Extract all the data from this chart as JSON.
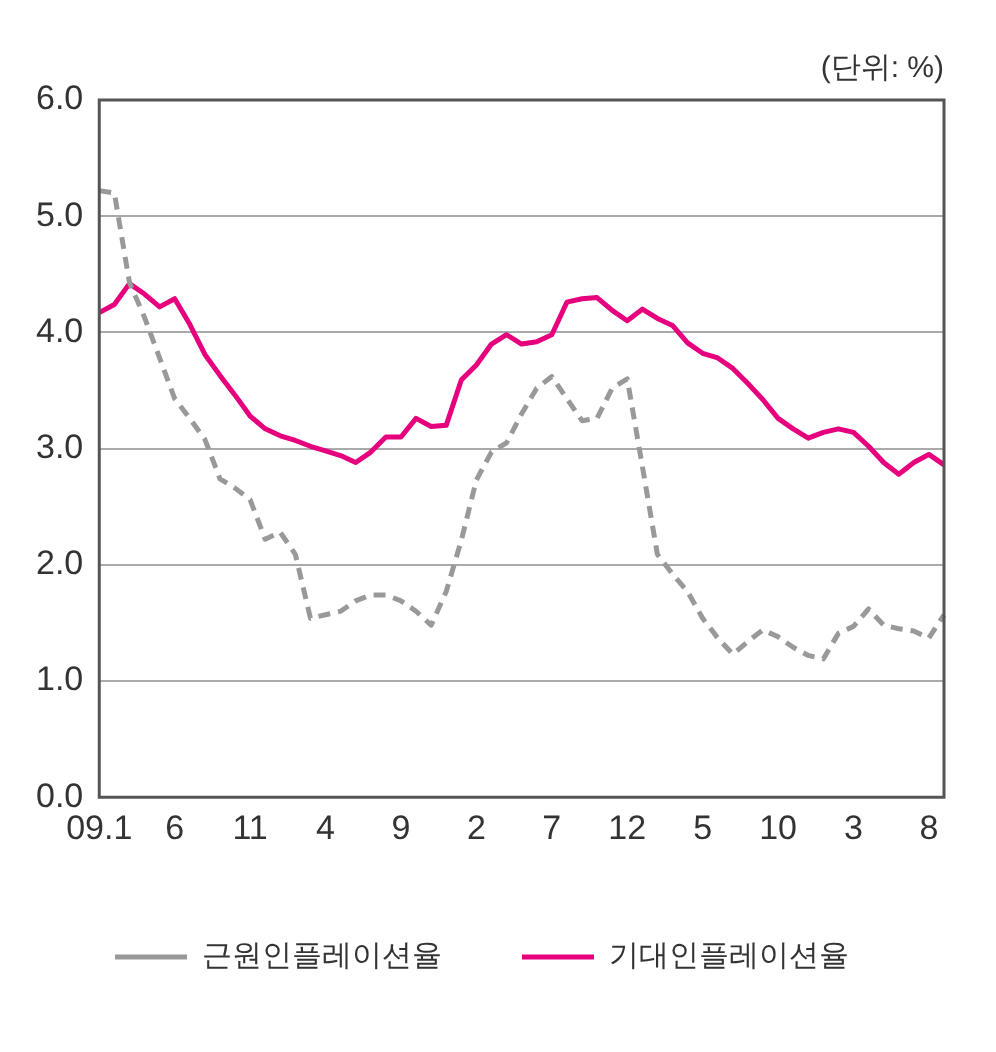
{
  "chart_data": {
    "type": "line",
    "annotations": [
      "(단위: %)"
    ],
    "categories": [
      "09.1",
      null,
      null,
      null,
      null,
      "6",
      null,
      null,
      null,
      null,
      "11",
      null,
      null,
      null,
      null,
      "4",
      null,
      null,
      null,
      null,
      "9",
      null,
      null,
      null,
      null,
      "2",
      null,
      null,
      null,
      null,
      "7",
      null,
      null,
      null,
      null,
      "12",
      null,
      null,
      null,
      null,
      "5",
      null,
      null,
      null,
      null,
      "10",
      null,
      null,
      null,
      null,
      "3",
      null,
      null,
      null,
      null,
      "8",
      null
    ],
    "series": [
      {
        "name": "근원인플레이션율",
        "color": "#999999",
        "line_style": "dashed",
        "values": [
          5.22,
          5.2,
          4.43,
          4.13,
          3.78,
          3.43,
          3.26,
          3.08,
          2.74,
          2.66,
          2.56,
          2.22,
          2.28,
          2.09,
          1.54,
          1.57,
          1.6,
          1.69,
          1.74,
          1.74,
          1.69,
          1.6,
          1.48,
          1.77,
          2.21,
          2.73,
          2.97,
          3.05,
          3.3,
          3.52,
          3.62,
          3.43,
          3.24,
          3.26,
          3.52,
          3.6,
          2.85,
          2.09,
          1.92,
          1.77,
          1.54,
          1.37,
          1.23,
          1.34,
          1.44,
          1.38,
          1.29,
          1.22,
          1.19,
          1.41,
          1.47,
          1.62,
          1.48,
          1.45,
          1.43,
          1.37,
          1.57
        ]
      },
      {
        "name": "기대인플레이션율",
        "color": "#e6007e",
        "line_style": "solid",
        "values": [
          4.17,
          4.24,
          4.42,
          4.33,
          4.22,
          4.29,
          4.07,
          3.81,
          3.63,
          3.46,
          3.28,
          3.17,
          3.11,
          3.07,
          3.02,
          2.98,
          2.94,
          2.88,
          2.97,
          3.1,
          3.1,
          3.26,
          3.19,
          3.2,
          3.59,
          3.72,
          3.9,
          3.98,
          3.9,
          3.92,
          3.98,
          4.26,
          4.29,
          4.3,
          4.19,
          4.1,
          4.2,
          4.12,
          4.06,
          3.91,
          3.82,
          3.78,
          3.69,
          3.56,
          3.42,
          3.26,
          3.17,
          3.09,
          3.14,
          3.17,
          3.14,
          3.02,
          2.88,
          2.78,
          2.88,
          2.95,
          2.86
        ]
      }
    ],
    "ylim": [
      0,
      6
    ],
    "yticks": [
      {
        "value": 0,
        "label": "0.0"
      },
      {
        "value": 1,
        "label": "1.0"
      },
      {
        "value": 2,
        "label": "2.0"
      },
      {
        "value": 3,
        "label": "3.0"
      },
      {
        "value": 4,
        "label": "4.0"
      },
      {
        "value": 5,
        "label": "5.0"
      },
      {
        "value": 6,
        "label": "6.0"
      }
    ],
    "grid": "y",
    "legend": "bottom",
    "marker": "none"
  }
}
